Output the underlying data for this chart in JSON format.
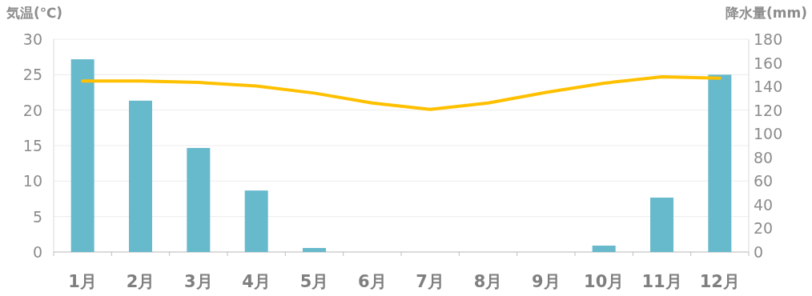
{
  "chart_data": {
    "type": "bar",
    "categories": [
      "1月",
      "2月",
      "3月",
      "4月",
      "5月",
      "6月",
      "7月",
      "8月",
      "9月",
      "10月",
      "11月",
      "12月"
    ],
    "ylabel": "気温(℃)",
    "y2label": "降水量(mm)",
    "ylim": [
      0,
      30
    ],
    "yticks": [
      0,
      5,
      10,
      15,
      20,
      25,
      30
    ],
    "y2lim": [
      0,
      180
    ],
    "y2ticks": [
      0,
      20,
      40,
      60,
      80,
      100,
      120,
      140,
      160,
      180
    ],
    "grid": "y",
    "series": [
      {
        "axis": "y2",
        "color": "#67b9cc",
        "values": [
          163,
          128,
          88,
          52,
          3.4,
          0,
          0,
          0,
          0,
          5.4,
          46,
          150
        ]
      },
      {
        "type": "line",
        "axis": "y",
        "color": "#ffc000",
        "values": [
          24.1,
          24.1,
          23.9,
          23.4,
          22.4,
          21.0,
          20.1,
          21.0,
          22.5,
          23.8,
          24.7,
          24.5
        ]
      }
    ]
  }
}
